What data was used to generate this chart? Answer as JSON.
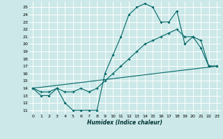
{
  "title": "",
  "xlabel": "Humidex (Indice chaleur)",
  "bg_color": "#cce8e8",
  "grid_color": "#ffffff",
  "line_color": "#006666",
  "xlim": [
    -0.5,
    23.5
  ],
  "ylim": [
    10.5,
    25.8
  ],
  "yticks": [
    11,
    12,
    13,
    14,
    15,
    16,
    17,
    18,
    19,
    20,
    21,
    22,
    23,
    24,
    25
  ],
  "xticks": [
    0,
    1,
    2,
    3,
    4,
    5,
    6,
    7,
    8,
    9,
    10,
    11,
    12,
    13,
    14,
    15,
    16,
    17,
    18,
    19,
    20,
    21,
    22,
    23
  ],
  "line1_x": [
    0,
    1,
    2,
    3,
    4,
    5,
    6,
    7,
    8,
    9,
    10,
    11,
    12,
    13,
    14,
    15,
    16,
    17,
    18,
    19,
    20,
    21,
    22,
    23
  ],
  "line1_y": [
    14,
    13,
    13,
    14,
    12,
    11,
    11,
    11,
    11,
    16,
    18.5,
    21,
    24,
    25,
    25.5,
    25,
    23,
    23,
    24.5,
    20,
    21,
    19.5,
    17,
    17
  ],
  "line2_x": [
    0,
    1,
    2,
    3,
    4,
    5,
    6,
    7,
    8,
    9,
    10,
    11,
    12,
    13,
    14,
    15,
    16,
    17,
    18,
    19,
    20,
    21,
    22,
    23
  ],
  "line2_y": [
    14,
    13.5,
    13.5,
    14,
    13.5,
    13.5,
    14,
    13.5,
    14,
    15,
    16,
    17,
    18,
    19,
    20,
    20.5,
    21,
    21.5,
    22,
    21,
    21,
    20.5,
    17,
    17
  ],
  "line3_x": [
    0,
    23
  ],
  "line3_y": [
    14,
    17
  ]
}
